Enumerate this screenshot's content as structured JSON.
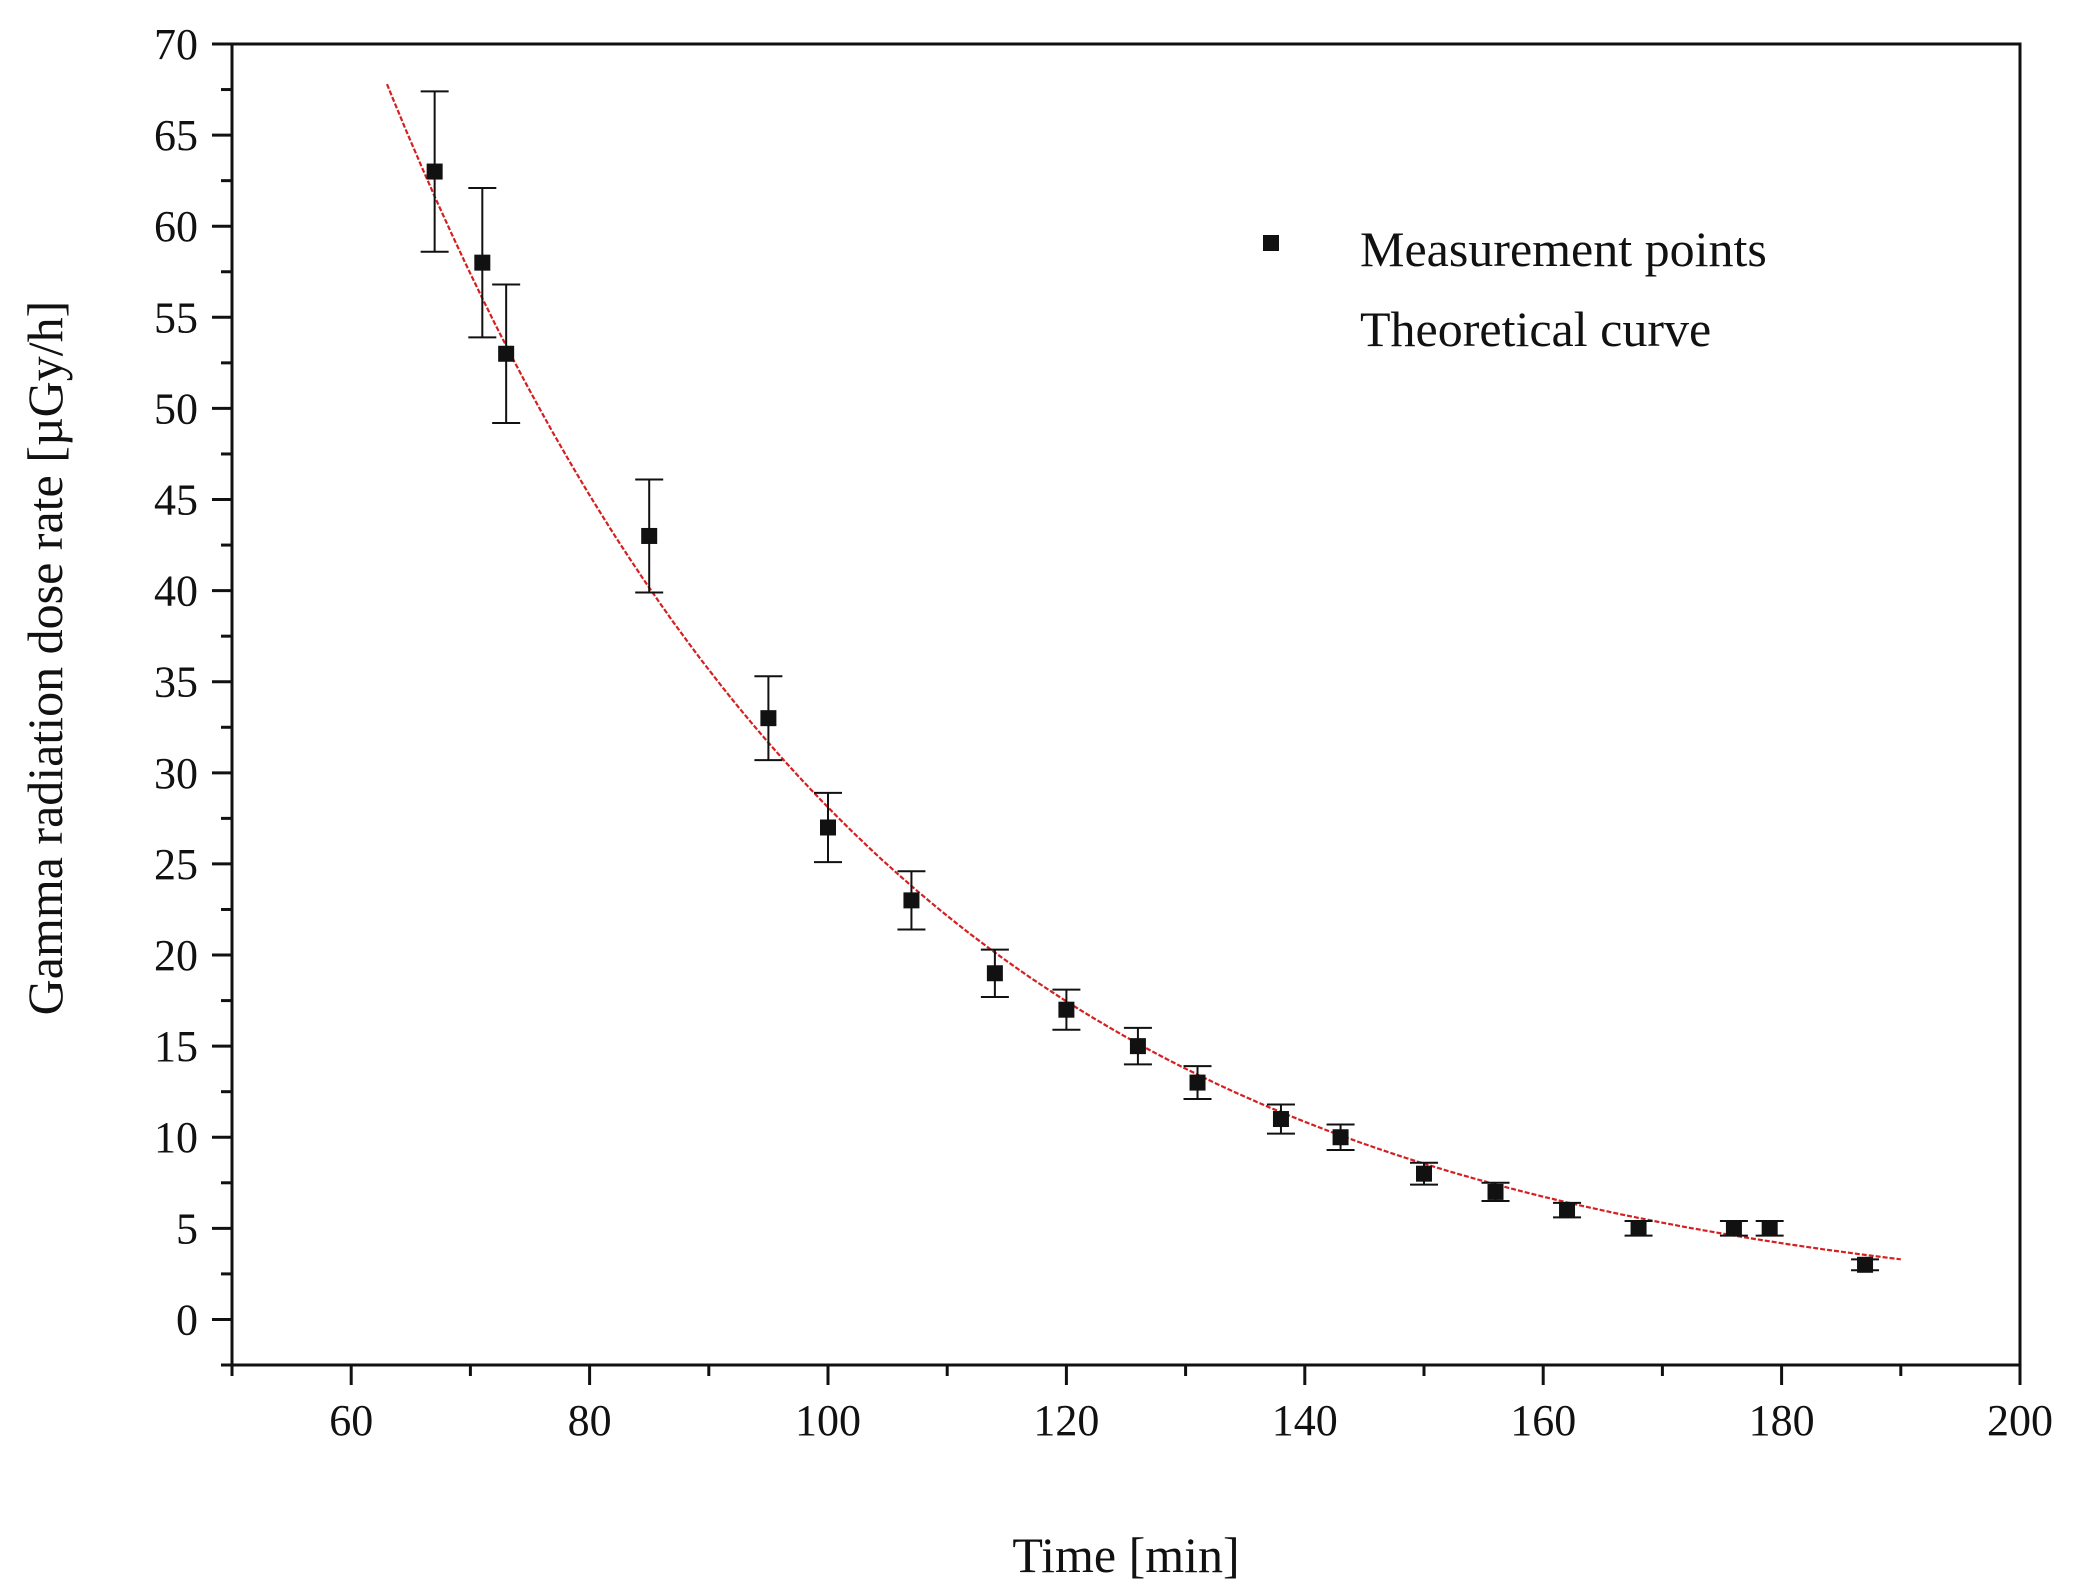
{
  "chart_data": {
    "type": "scatter",
    "title": "",
    "xlabel": "Time [min]",
    "ylabel": "Gamma radiation dose rate [µGy/h]",
    "xlim": [
      50,
      200
    ],
    "ylim": [
      -2.5,
      70
    ],
    "xticks": [
      "60",
      "80",
      "100",
      "120",
      "140",
      "160",
      "180",
      "200"
    ],
    "yticks": [
      "0",
      "5",
      "10",
      "15",
      "20",
      "25",
      "30",
      "35",
      "40",
      "45",
      "50",
      "55",
      "60",
      "65",
      "70"
    ],
    "grid": false,
    "legend_position": "top-right",
    "series": [
      {
        "name": "Measurement points",
        "kind": "scatter",
        "marker": "square",
        "color": "#111111",
        "x": [
          67,
          71,
          73,
          85,
          95,
          100,
          107,
          114,
          120,
          126,
          131,
          138,
          143,
          150,
          156,
          162,
          168,
          176,
          179,
          187
        ],
        "y": [
          63,
          58,
          53,
          43,
          33,
          27,
          23,
          19,
          17,
          15,
          13,
          11,
          10,
          8,
          7,
          6,
          5,
          5,
          5,
          3
        ],
        "error": [
          4.4,
          4.1,
          3.8,
          3.1,
          2.3,
          1.9,
          1.6,
          1.3,
          1.1,
          1.0,
          0.9,
          0.8,
          0.7,
          0.6,
          0.5,
          0.4,
          0.4,
          0.4,
          0.4,
          0.3
        ]
      },
      {
        "name": "Theoretical curve",
        "kind": "line",
        "color": "#d42020",
        "model": "exponential",
        "x_range": [
          63,
          190
        ],
        "amplitude_at_63": 67.8,
        "decay_rate_per_min": 0.0238
      }
    ]
  }
}
